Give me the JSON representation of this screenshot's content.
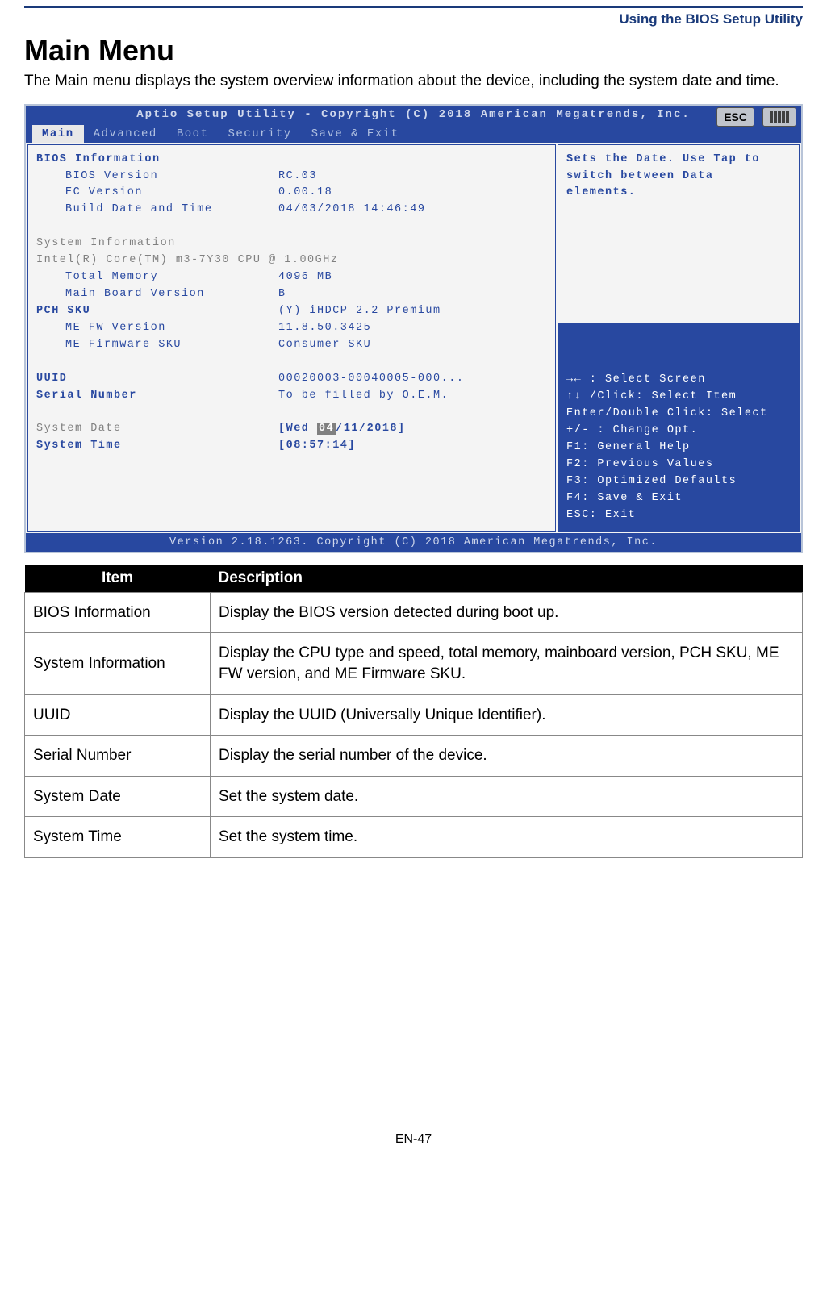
{
  "doc": {
    "header_title": "Using the BIOS Setup Utility",
    "heading": "Main Menu",
    "intro": "The Main menu displays the system overview information about the device, including the system date and time.",
    "page_number": "EN-47"
  },
  "bios": {
    "title": "Aptio Setup Utility - Copyright (C) 2018 American Megatrends, Inc.",
    "esc_label": "ESC",
    "tabs": [
      "Main",
      "Advanced",
      "Boot",
      "Security",
      "Save & Exit"
    ],
    "active_tab": "Main",
    "sections": {
      "bios_info_title": "BIOS Information",
      "bios_version_label": "BIOS Version",
      "bios_version_val": "RC.03",
      "ec_version_label": "EC Version",
      "ec_version_val": "0.00.18",
      "build_label": "Build Date and Time",
      "build_val": "04/03/2018 14:46:49",
      "sys_info_title": "System Information",
      "cpu_line": "Intel(R) Core(TM) m3-7Y30 CPU @ 1.00GHz",
      "total_mem_label": "Total Memory",
      "total_mem_val": "4096 MB",
      "mb_ver_label": "Main Board Version",
      "mb_ver_val": "B",
      "pch_label": "PCH SKU",
      "pch_val": "(Y) iHDCP 2.2 Premium",
      "mefw_label": "ME FW Version",
      "mefw_val": "11.8.50.3425",
      "mefwsku_label": "ME Firmware SKU",
      "mefwsku_val": "Consumer SKU",
      "uuid_label": "UUID",
      "uuid_val": "00020003-00040005-000...",
      "serial_label": "Serial Number",
      "serial_val": "To be filled by O.E.M.",
      "sysdate_label": "System Date",
      "sysdate_prefix": "[Wed ",
      "sysdate_sel": "04",
      "sysdate_suffix": "/11/2018]",
      "systime_label": "System Time",
      "systime_val": "[08:57:14]"
    },
    "help_top": "Sets the Date. Use Tap to switch between Data elements.",
    "help_bottom": [
      "→← : Select Screen",
      "↑↓ /Click: Select Item",
      "Enter/Double Click: Select",
      "+/- : Change Opt.",
      "F1: General Help",
      "F2: Previous Values",
      "F3: Optimized Defaults",
      "F4: Save & Exit",
      "ESC: Exit"
    ],
    "footer": "Version 2.18.1263. Copyright (C) 2018 American Megatrends, Inc."
  },
  "table": {
    "header_item": "Item",
    "header_desc": "Description",
    "rows": [
      {
        "item": "BIOS Information",
        "desc": "Display the BIOS version detected during boot up."
      },
      {
        "item": "System Information",
        "desc": "Display the CPU type and speed, total memory, mainboard version, PCH SKU, ME FW version, and ME Firmware SKU."
      },
      {
        "item": "UUID",
        "desc": "Display the UUID (Universally Unique Identifier)."
      },
      {
        "item": "Serial Number",
        "desc": "Display the serial number of the device."
      },
      {
        "item": "System Date",
        "desc": "Set the system date."
      },
      {
        "item": "System Time",
        "desc": "Set the system time."
      }
    ]
  }
}
